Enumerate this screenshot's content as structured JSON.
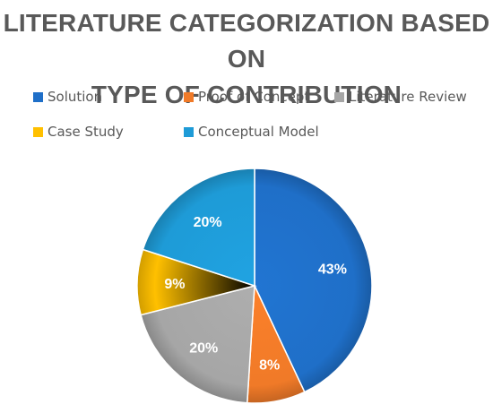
{
  "chart_data": {
    "type": "pie",
    "title_lines": [
      "LITERATURE CATEGORIZATION BASED ON",
      "TYPE OF CONTRIBUTION"
    ],
    "legend_position": "top",
    "slices": [
      {
        "label": "Solution",
        "value": 43,
        "display": "43%",
        "color": "#1F6FC8"
      },
      {
        "label": "Proof of Concept",
        "value": 8,
        "display": "8%",
        "color": "#F07A28"
      },
      {
        "label": "Literature Review",
        "value": 20,
        "display": "20%",
        "color": "#A6A6A6"
      },
      {
        "label": "Case Study",
        "value": 9,
        "display": "9%",
        "color": "#FFC000"
      },
      {
        "label": "Conceptual Model",
        "value": 20,
        "display": "20%",
        "color": "#1E9BD7"
      }
    ]
  }
}
